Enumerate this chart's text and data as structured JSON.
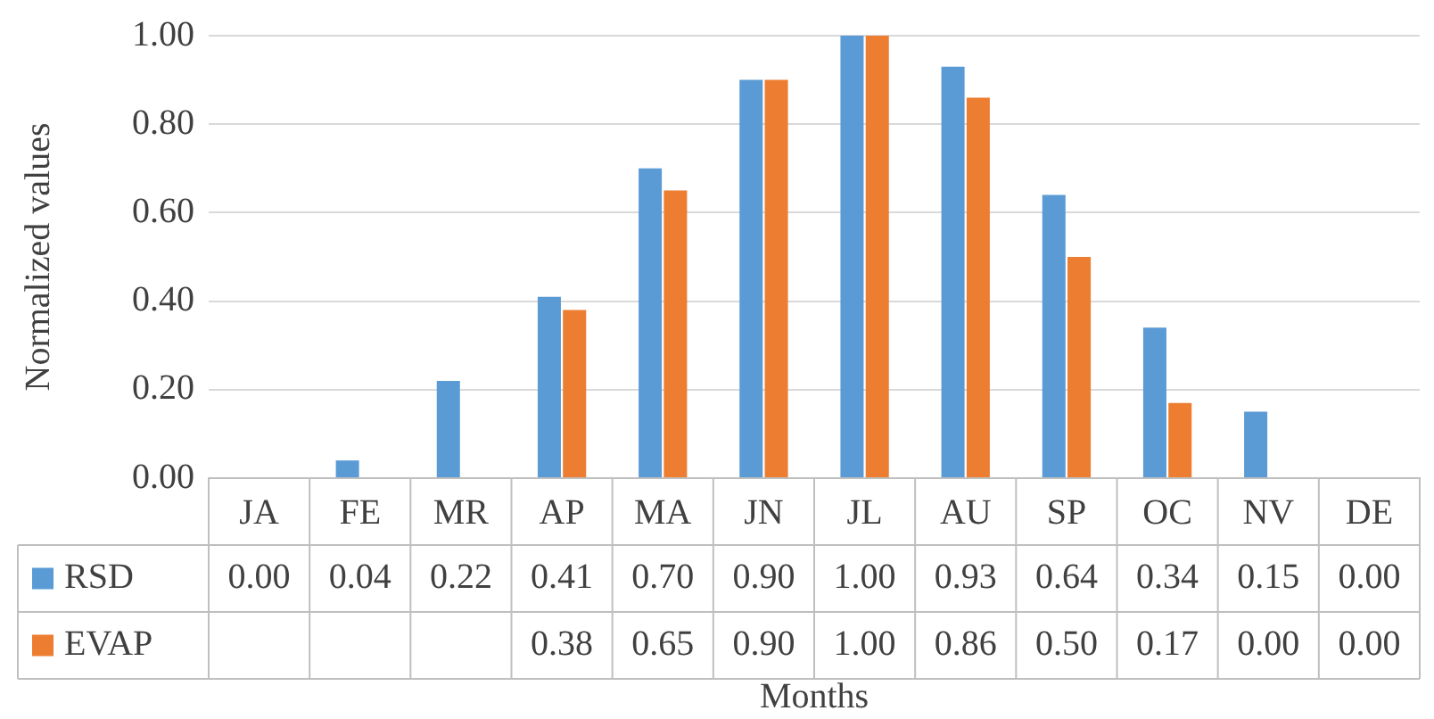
{
  "chart_data": {
    "type": "bar",
    "xlabel": "Months",
    "ylabel": "Normalized values",
    "categories": [
      "JA",
      "FE",
      "MR",
      "AP",
      "MA",
      "JN",
      "JL",
      "AU",
      "SP",
      "OC",
      "NV",
      "DE"
    ],
    "series": [
      {
        "name": "RSD",
        "color": "#5b9bd5",
        "values": [
          0.0,
          0.04,
          0.22,
          0.41,
          0.7,
          0.9,
          1.0,
          0.93,
          0.64,
          0.34,
          0.15,
          0.0
        ],
        "value_labels": [
          "0.00",
          "0.04",
          "0.22",
          "0.41",
          "0.70",
          "0.90",
          "1.00",
          "0.93",
          "0.64",
          "0.34",
          "0.15",
          "0.00"
        ]
      },
      {
        "name": "EVAP",
        "color": "#ed7d31",
        "values": [
          null,
          null,
          null,
          0.38,
          0.65,
          0.9,
          1.0,
          0.86,
          0.5,
          0.17,
          0.0,
          0.0
        ],
        "value_labels": [
          null,
          null,
          null,
          "0.38",
          "0.65",
          "0.90",
          "1.00",
          "0.86",
          "0.50",
          "0.17",
          "0.00",
          "0.00"
        ]
      }
    ],
    "ylim": [
      0,
      1
    ],
    "yticks": [
      {
        "value": 0,
        "label": "0.00"
      },
      {
        "value": 0.2,
        "label": "0.20"
      },
      {
        "value": 0.4,
        "label": "0.40"
      },
      {
        "value": 0.6,
        "label": "0.60"
      },
      {
        "value": 0.8,
        "label": "0.80"
      },
      {
        "value": 1,
        "label": "1.00"
      }
    ],
    "grid": "y",
    "legend": "bottom"
  }
}
